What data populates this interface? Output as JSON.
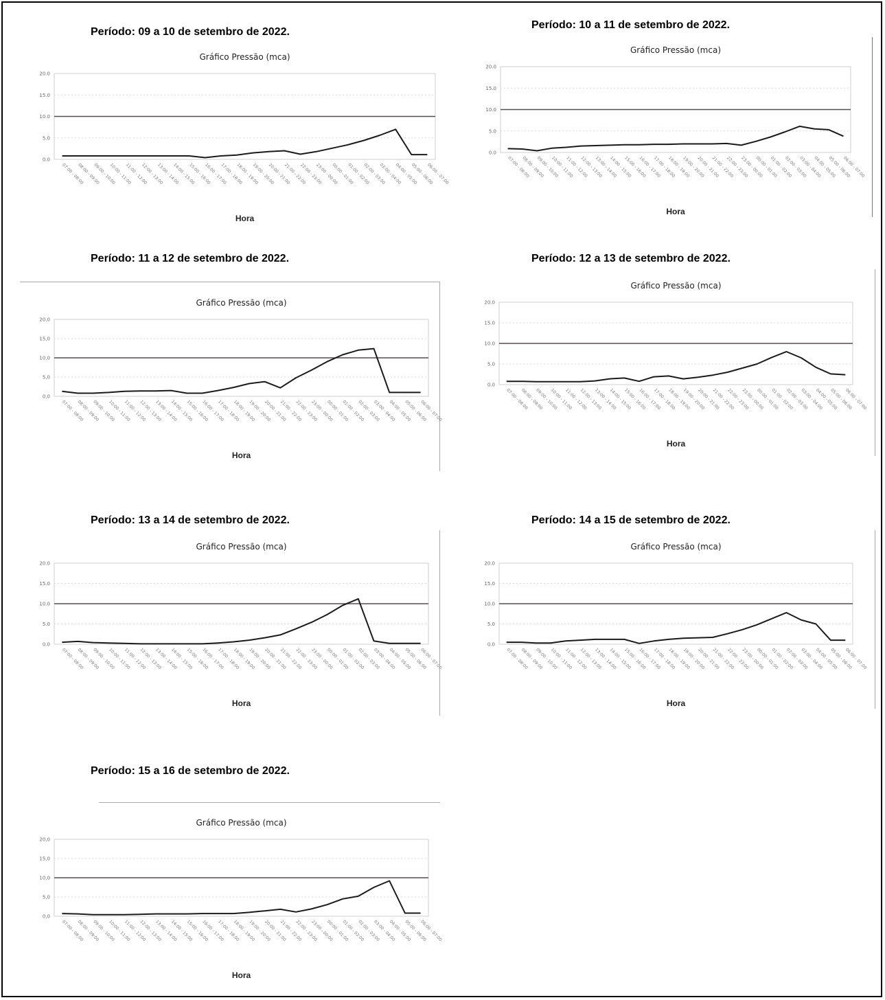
{
  "panels": [
    {
      "period": "Período:  09 a 10 de setembro de 2022."
    },
    {
      "period": "Período: 10 a 11 de setembro de 2022."
    },
    {
      "period": "Período: 11 a 12 de setembro de 2022."
    },
    {
      "period": "Período: 12 a 13 de setembro de 2022."
    },
    {
      "period": "Período: 13 a 14 de setembro de 2022."
    },
    {
      "period": "Período: 14 a 15 de setembro de 2022."
    },
    {
      "period": "Período: 15 a 16 de setembro de 2022."
    }
  ],
  "chart_data": [
    {
      "type": "line",
      "title": "Gráfico Pressão (mca)",
      "xlabel": "Hora",
      "ylabel": "",
      "ylim": [
        0,
        20
      ],
      "yticks": [
        "0.0",
        "5.0",
        "10.0",
        "15.0",
        "20.0"
      ],
      "reference_line": 10,
      "categories": [
        "07:00 - 08:00",
        "08:00 - 09:00",
        "09:00 - 10:00",
        "10:00 - 11:00",
        "11:00 - 12:00",
        "12:00 - 13:00",
        "13:00 - 14:00",
        "14:00 - 15:00",
        "15:00 - 16:00",
        "16:00 - 17:00",
        "17:00 - 18:00",
        "18:00 - 19:00",
        "19:00 - 20:00",
        "20:00 - 21:00",
        "21:00 - 22:00",
        "22:00 - 23:00",
        "23:00 - 00:00",
        "00:00 - 01:00",
        "01:00 - 02:00",
        "02:00 - 03:00",
        "03:00 - 04:00",
        "04:00 - 05:00",
        "05:00 - 06:00",
        "06:00 - 07:00"
      ],
      "values": [
        0.8,
        0.8,
        0.8,
        0.8,
        0.8,
        0.8,
        0.8,
        0.8,
        0.8,
        0.4,
        0.8,
        1.0,
        1.5,
        1.8,
        2.0,
        1.2,
        1.8,
        2.6,
        3.4,
        4.4,
        5.6,
        7.0,
        1.1,
        1.1
      ],
      "colors": {
        "series": "#1a1a1a",
        "reference": "#5a4a50"
      }
    },
    {
      "type": "line",
      "title": "Gráfico Pressão (mca)",
      "xlabel": "Hora",
      "ylabel": "",
      "ylim": [
        0,
        20
      ],
      "yticks": [
        "0.0",
        "5.0",
        "10.0",
        "15.0",
        "20.0"
      ],
      "reference_line": 10,
      "categories": [
        "07:00 - 08:00",
        "08:00 - 09:00",
        "09:00 - 10:00",
        "10:00 - 11:00",
        "11:00 - 12:00",
        "12:00 - 13:00",
        "13:00 - 14:00",
        "14:00 - 15:00",
        "15:00 - 16:00",
        "16:00 - 17:00",
        "17:00 - 18:00",
        "18:00 - 19:00",
        "19:00 - 20:00",
        "20:00 - 21:00",
        "21:00 - 22:00",
        "22:00 - 23:00",
        "23:00 - 00:00",
        "00:00 - 01:00",
        "01:00 - 02:00",
        "02:00 - 03:00",
        "03:00 - 04:00",
        "04:00 - 05:00",
        "05:00 - 06:00",
        "06:00 - 07:00"
      ],
      "values": [
        0.9,
        0.8,
        0.4,
        1.0,
        1.2,
        1.5,
        1.6,
        1.7,
        1.8,
        1.8,
        1.9,
        1.9,
        2.0,
        2.0,
        2.0,
        2.1,
        1.7,
        2.6,
        3.6,
        4.8,
        6.1,
        5.5,
        5.3,
        3.8
      ],
      "colors": {
        "series": "#1a1a1a",
        "reference": "#5a4a50"
      }
    },
    {
      "type": "line",
      "title": "Gráfico Pressão (mca)",
      "xlabel": "Hora",
      "ylabel": "",
      "ylim": [
        0,
        20
      ],
      "yticks": [
        "0,0",
        "5,0",
        "10,0",
        "15,0",
        "20,0"
      ],
      "reference_line": 10,
      "categories": [
        "07:00 - 08:00",
        "08:00 - 09:00",
        "09:00 - 10:00",
        "10:00 - 11:00",
        "11:00 - 12:00",
        "12:00 - 13:00",
        "13:00 - 14:00",
        "14:00 - 15:00",
        "15:00 - 16:00",
        "16:00 - 17:00",
        "17:00 - 18:00",
        "18:00 - 19:00",
        "19:00 - 20:00",
        "20:00 - 21:00",
        "21:00 - 22:00",
        "22:00 - 23:00",
        "23:00 - 00:00",
        "00:00 - 01:00",
        "01:00 - 02:00",
        "02:00 - 03:00",
        "03:00 - 04:00",
        "04:00 - 05:00",
        "05:00 - 06:00",
        "06:00 - 07:00"
      ],
      "values": [
        1.3,
        0.8,
        0.8,
        1.0,
        1.3,
        1.4,
        1.4,
        1.5,
        0.8,
        0.8,
        1.5,
        2.3,
        3.3,
        3.8,
        2.2,
        4.8,
        6.8,
        9.0,
        10.8,
        12.0,
        12.4,
        1.0,
        1.0,
        1.0
      ],
      "colors": {
        "series": "#1a1a1a",
        "reference": "#5a4a50"
      }
    },
    {
      "type": "line",
      "title": "Gráfico Pressão (mca)",
      "xlabel": "Hora",
      "ylabel": "",
      "ylim": [
        0,
        20
      ],
      "yticks": [
        "0.0",
        "5.0",
        "10.0",
        "15.0",
        "20.0"
      ],
      "reference_line": 10,
      "categories": [
        "07:00 - 08:00",
        "08:00 - 09:00",
        "09:00 - 10:00",
        "10:00 - 11:00",
        "11:00 - 12:00",
        "12:00 - 13:00",
        "13:00 - 14:00",
        "14:00 - 15:00",
        "15:00 - 16:00",
        "16:00 - 17:00",
        "17:00 - 18:00",
        "18:00 - 19:00",
        "19:00 - 20:00",
        "20:00 - 21:00",
        "21:00 - 22:00",
        "22:00 - 23:00",
        "23:00 - 00:00",
        "00:00 - 01:00",
        "01:00 - 02:00",
        "02:00 - 03:00",
        "03:00 - 04:00",
        "04:00 - 05:00",
        "05:00 - 06:00",
        "06:00 - 07:00"
      ],
      "values": [
        0.8,
        0.8,
        0.7,
        0.7,
        0.7,
        0.7,
        0.9,
        1.4,
        1.6,
        0.8,
        1.9,
        2.1,
        1.4,
        1.8,
        2.3,
        3.0,
        4.0,
        5.0,
        6.6,
        8.0,
        6.5,
        4.2,
        2.6,
        2.4
      ],
      "colors": {
        "series": "#1a1a1a",
        "reference": "#5a4a50"
      }
    },
    {
      "type": "line",
      "title": "Gráfico Pressão (mca)",
      "xlabel": "Hora",
      "ylabel": "",
      "ylim": [
        0,
        20
      ],
      "yticks": [
        "0.0",
        "5.0",
        "10.0",
        "15.0",
        "20.0"
      ],
      "reference_line": 10,
      "categories": [
        "07:00 - 08:00",
        "08:00 - 09:00",
        "09:00 - 10:00",
        "10:00 - 11:00",
        "11:00 - 12:00",
        "12:00 - 13:00",
        "13:00 - 14:00",
        "14:00 - 15:00",
        "15:00 - 16:00",
        "16:00 - 17:00",
        "17:00 - 18:00",
        "18:00 - 19:00",
        "19:00 - 20:00",
        "20:00 - 21:00",
        "21:00 - 22:00",
        "22:00 - 23:00",
        "23:00 - 00:00",
        "00:00 - 01:00",
        "01:00 - 02:00",
        "02:00 - 03:00",
        "03:00 - 04:00",
        "04:00 - 05:00",
        "05:00 - 06:00",
        "06:00 - 07:00"
      ],
      "values": [
        0.5,
        0.7,
        0.4,
        0.3,
        0.2,
        0.1,
        0.1,
        0.1,
        0.1,
        0.1,
        0.3,
        0.6,
        1.0,
        1.6,
        2.3,
        3.8,
        5.4,
        7.3,
        9.6,
        11.2,
        0.8,
        0.2,
        0.2,
        0.2
      ],
      "colors": {
        "series": "#1a1a1a",
        "reference": "#5a4a50"
      }
    },
    {
      "type": "line",
      "title": "Gráfico Pressão (mca)",
      "xlabel": "Hora",
      "ylabel": "",
      "ylim": [
        0,
        20
      ],
      "yticks": [
        "0.0",
        "5.0",
        "10.0",
        "15.0",
        "20.0"
      ],
      "reference_line": 10,
      "categories": [
        "07:00 - 08:00",
        "08:00 - 09:00",
        "09:00 - 10:00",
        "10:00 - 11:00",
        "11:00 - 12:00",
        "12:00 - 13:00",
        "13:00 - 14:00",
        "14:00 - 15:00",
        "15:00 - 16:00",
        "16:00 - 17:00",
        "17:00 - 18:00",
        "18:00 - 19:00",
        "19:00 - 20:00",
        "20:00 - 21:00",
        "21:00 - 22:00",
        "22:00 - 23:00",
        "23:00 - 00:00",
        "00:00 - 01:00",
        "01:00 - 02:00",
        "02:00 - 03:00",
        "03:00 - 04:00",
        "04:00 - 05:00",
        "05:00 - 06:00",
        "06:00 - 07:00"
      ],
      "values": [
        0.5,
        0.5,
        0.3,
        0.3,
        0.8,
        1.0,
        1.2,
        1.2,
        1.2,
        0.2,
        0.8,
        1.2,
        1.5,
        1.6,
        1.7,
        2.6,
        3.6,
        4.8,
        6.3,
        7.8,
        6.0,
        5.0,
        1.0,
        1.0
      ],
      "colors": {
        "series": "#1a1a1a",
        "reference": "#5a4a50"
      }
    },
    {
      "type": "line",
      "title": "Gráfico Pressão (mca)",
      "xlabel": "Hora",
      "ylabel": "",
      "ylim": [
        0,
        20
      ],
      "yticks": [
        "0,0",
        "5,0",
        "10,0",
        "15,0",
        "20,0"
      ],
      "reference_line": 10,
      "categories": [
        "07:00 - 08:00",
        "08:00 - 09:00",
        "09:00 - 10:00",
        "10:00 - 11:00",
        "11:00 - 12:00",
        "12:00 - 13:00",
        "13:00 - 14:00",
        "14:00 - 15:00",
        "15:00 - 16:00",
        "16:00 - 17:00",
        "17:00 - 18:00",
        "18:00 - 19:00",
        "19:00 - 20:00",
        "20:00 - 21:00",
        "21:00 - 22:00",
        "22:00 - 23:00",
        "23:00 - 00:00",
        "00:00 - 01:00",
        "01:00 - 02:00",
        "02:00 - 03:00",
        "03:00 - 04:00",
        "04:00 - 05:00",
        "05:00 - 06:00",
        "06:00 - 07:00"
      ],
      "values": [
        0.7,
        0.6,
        0.4,
        0.4,
        0.4,
        0.5,
        0.6,
        0.6,
        0.6,
        0.7,
        0.7,
        0.7,
        1.0,
        1.4,
        1.8,
        1.1,
        1.9,
        3.0,
        4.5,
        5.2,
        7.5,
        9.2,
        0.8,
        0.8
      ],
      "colors": {
        "series": "#1a1a1a",
        "reference": "#5a4a50"
      }
    }
  ]
}
